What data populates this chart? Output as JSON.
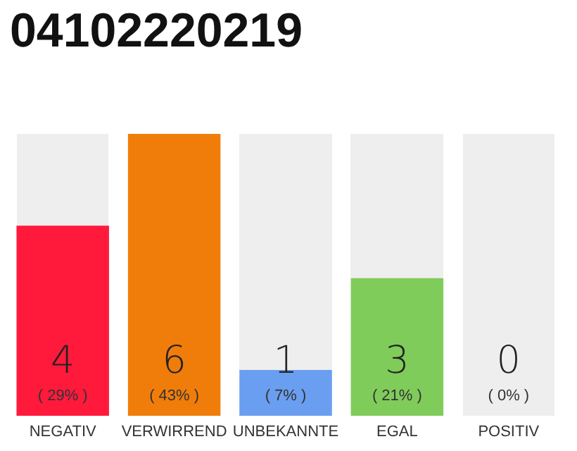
{
  "chart_data": {
    "type": "bar",
    "title": "04102220219",
    "categories": [
      "NEGATIV",
      "VERWIRREND",
      "UNBEKANNTE",
      "EGAL",
      "POSITIV"
    ],
    "values": [
      29,
      43,
      7,
      21,
      0
    ],
    "colors": [
      "#ff1a3c",
      "#f07d0a",
      "#6a9ef0",
      "#80cc5a",
      "#cccccc"
    ],
    "value_labels": [
      "( 29% )",
      "( 43% )",
      "( 7% )",
      "( 21% )",
      "( 0% )"
    ],
    "annotations": [
      "4",
      "6",
      "1",
      "3",
      "0"
    ],
    "bands": [
      {
        "axis": "x",
        "from": "NEGATIV",
        "to": "NEGATIV",
        "color": "#eeeeee"
      },
      {
        "axis": "x",
        "from": "UNBEKANNTE",
        "to": "UNBEKANNTE",
        "color": "#eeeeee"
      },
      {
        "axis": "x",
        "from": "EGAL",
        "to": "EGAL",
        "color": "#eeeeee"
      },
      {
        "axis": "x",
        "from": "POSITIV",
        "to": "POSITIV",
        "color": "#eeeeee"
      }
    ],
    "tick_labels": "x",
    "grid": false
  }
}
